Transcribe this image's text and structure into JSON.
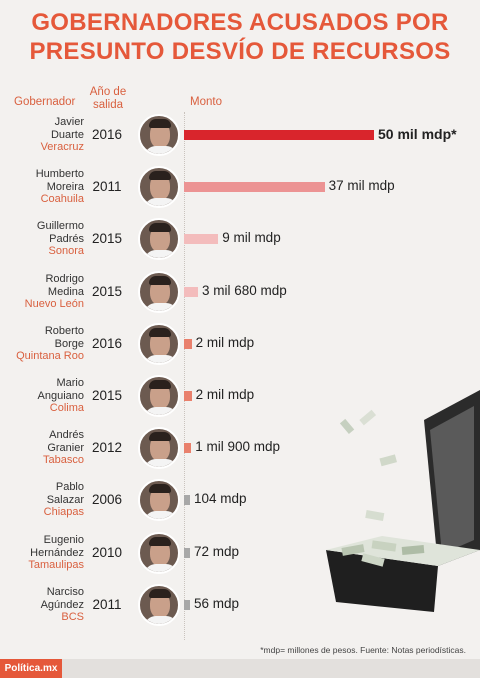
{
  "title": {
    "line1": "GOBERNADORES ACUSADOS POR",
    "line2": "PRESUNTO DESVÍO DE RECURSOS"
  },
  "headers": {
    "governor": "Gobernador",
    "year_line1": "Año de",
    "year_line2": "salida",
    "amount": "Monto"
  },
  "chart_data": {
    "type": "bar",
    "orientation": "horizontal",
    "unit": "mdp",
    "categories": [
      "Javier Duarte",
      "Humberto Moreira",
      "Guillermo Padrés",
      "Rodrigo Medina",
      "Roberto Borge",
      "Mario Anguiano",
      "Andrés Granier",
      "Pablo Salazar",
      "Eugenio Hernández",
      "Narciso Agúndez"
    ],
    "values": [
      50000,
      37000,
      9000,
      3680,
      2000,
      2000,
      1900,
      104,
      72,
      56
    ]
  },
  "rows": [
    {
      "first": "Javier",
      "last": "Duarte",
      "state": "Veracruz",
      "year": "2016",
      "amount_label": "50 mil mdp*",
      "color": "#d9252c"
    },
    {
      "first": "Humberto",
      "last": "Moreira",
      "state": "Coahuila",
      "year": "2011",
      "amount_label": "37 mil mdp",
      "color": "#ec9393"
    },
    {
      "first": "Guillermo",
      "last": "Padrés",
      "state": "Sonora",
      "year": "2015",
      "amount_label": "9 mil mdp",
      "color": "#f3bcbc"
    },
    {
      "first": "Rodrigo",
      "last": "Medina",
      "state": "Nuevo León",
      "year": "2015",
      "amount_label": "3 mil 680 mdp",
      "color": "#f3bcbc"
    },
    {
      "first": "Roberto",
      "last": "Borge",
      "state": "Quintana Roo",
      "year": "2016",
      "amount_label": "2 mil mdp",
      "color": "#e9806c"
    },
    {
      "first": "Mario",
      "last": "Anguiano",
      "state": "Colima",
      "year": "2015",
      "amount_label": "2 mil mdp",
      "color": "#e9806c"
    },
    {
      "first": "Andrés",
      "last": "Granier",
      "state": "Tabasco",
      "year": "2012",
      "amount_label": "1 mil 900 mdp",
      "color": "#e9806c"
    },
    {
      "first": "Pablo",
      "last": "Salazar",
      "state": "Chiapas",
      "year": "2006",
      "amount_label": "104 mdp",
      "color": "#a7a7a7"
    },
    {
      "first": "Eugenio",
      "last": "Hernández",
      "state": "Tamaulipas",
      "year": "2010",
      "amount_label": "72 mdp",
      "color": "#a7a7a7"
    },
    {
      "first": "Narciso",
      "last": "Agúndez",
      "state": "BCS",
      "year": "2011",
      "amount_label": "56 mdp",
      "color": "#a7a7a7"
    }
  ],
  "footnote": "*mdp= millones de pesos.   Fuente: Notas periodísticas.",
  "brand": "Política.mx",
  "colors": {
    "accent": "#e5583a",
    "background": "#f3f1ef"
  }
}
